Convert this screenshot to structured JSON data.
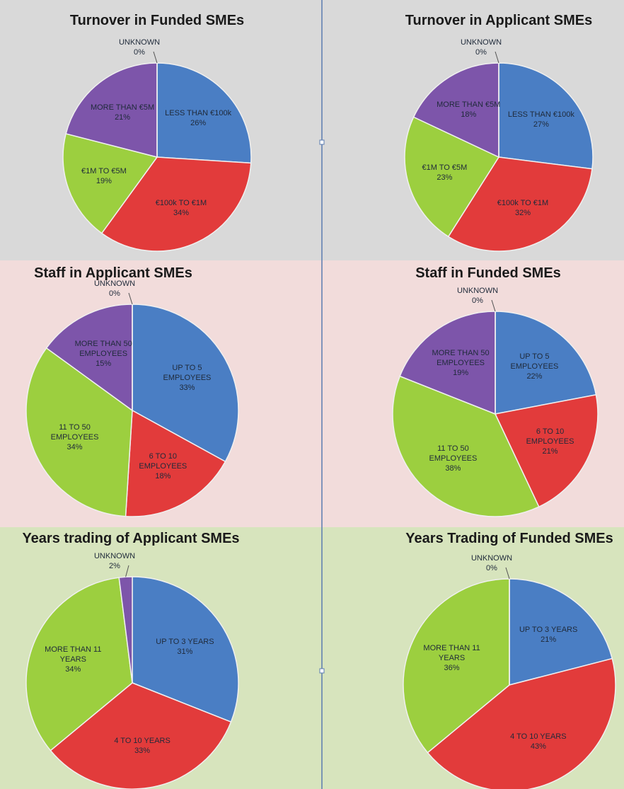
{
  "chart_data": [
    {
      "type": "pie",
      "title": "Turnover in Funded SMEs",
      "categories": [
        "LESS THAN €100k",
        "€100k TO €1M",
        "€1M TO €5M",
        "MORE THAN €5M",
        "UNKNOWN"
      ],
      "values": [
        26,
        34,
        19,
        21,
        0
      ],
      "value_labels": [
        "26%",
        "34%",
        "19%",
        "21%",
        "0%"
      ],
      "colors": [
        "#4a7ec4",
        "#e23b3b",
        "#9ccf3f",
        "#7d55aa",
        "#c8c8c8"
      ]
    },
    {
      "type": "pie",
      "title": "Turnover in Applicant SMEs",
      "categories": [
        "LESS THAN €100k",
        "€100k TO €1M",
        "€1M TO €5M",
        "MORE THAN €5M",
        "UNKNOWN"
      ],
      "values": [
        27,
        32,
        23,
        18,
        0
      ],
      "value_labels": [
        "27%",
        "32%",
        "23%",
        "18%",
        "0%"
      ],
      "colors": [
        "#4a7ec4",
        "#e23b3b",
        "#9ccf3f",
        "#7d55aa",
        "#c8c8c8"
      ]
    },
    {
      "type": "pie",
      "title": "Staff in Applicant SMEs",
      "categories": [
        "UP TO 5 EMPLOYEES",
        "6 TO 10 EMPLOYEES",
        "11 TO 50 EMPLOYEES",
        "MORE THAN 50 EMPLOYEES",
        "UNKNOWN"
      ],
      "values": [
        33,
        18,
        34,
        15,
        0
      ],
      "value_labels": [
        "33%",
        "18%",
        "34%",
        "15%",
        "0%"
      ],
      "colors": [
        "#4a7ec4",
        "#e23b3b",
        "#9ccf3f",
        "#7d55aa",
        "#c8c8c8"
      ]
    },
    {
      "type": "pie",
      "title": "Staff in Funded SMEs",
      "categories": [
        "UP TO 5 EMPLOYEES",
        "6 TO 10 EMPLOYEES",
        "11 TO 50 EMPLOYEES",
        "MORE THAN 50 EMPLOYEES",
        "UNKNOWN"
      ],
      "values": [
        22,
        21,
        38,
        19,
        0
      ],
      "value_labels": [
        "22%",
        "21%",
        "38%",
        "19%",
        "0%"
      ],
      "colors": [
        "#4a7ec4",
        "#e23b3b",
        "#9ccf3f",
        "#7d55aa",
        "#c8c8c8"
      ]
    },
    {
      "type": "pie",
      "title": "Years trading of Applicant SMEs",
      "categories": [
        "UP TO 3 YEARS",
        "4 TO 10 YEARS",
        "MORE THAN 11 YEARS",
        "UNKNOWN"
      ],
      "values": [
        31,
        33,
        34,
        2
      ],
      "value_labels": [
        "31%",
        "33%",
        "34%",
        "2%"
      ],
      "colors": [
        "#4a7ec4",
        "#e23b3b",
        "#9ccf3f",
        "#7d55aa"
      ]
    },
    {
      "type": "pie",
      "title": "Years Trading of Funded SMEs",
      "categories": [
        "UP TO 3 YEARS",
        "4 TO 10 YEARS",
        "MORE THAN 11 YEARS",
        "UNKNOWN"
      ],
      "values": [
        21,
        43,
        36,
        0
      ],
      "value_labels": [
        "21%",
        "43%",
        "36%",
        "0%"
      ],
      "colors": [
        "#4a7ec4",
        "#e23b3b",
        "#9ccf3f",
        "#7d55aa"
      ]
    }
  ]
}
